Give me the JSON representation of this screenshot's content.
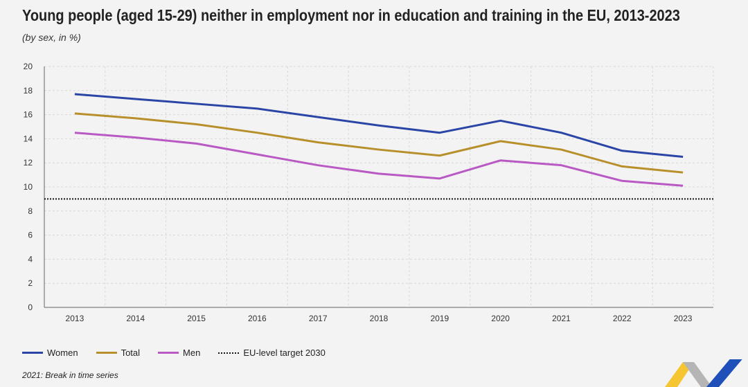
{
  "title": "Young people (aged 15-29) neither in employment nor in education and training in the EU, 2013-2023",
  "subtitle": "(by sex, in %)",
  "note": "2021: Break in time series",
  "chart_data": {
    "type": "line",
    "title": "Young people (aged 15-29) neither in employment nor in education and training in the EU, 2013-2023",
    "xlabel": "",
    "ylabel": "%",
    "categories": [
      "2013",
      "2014",
      "2015",
      "2016",
      "2017",
      "2018",
      "2019",
      "2020",
      "2021",
      "2022",
      "2023"
    ],
    "ylim": [
      0,
      20
    ],
    "yticks": [
      0,
      2,
      4,
      6,
      8,
      10,
      12,
      14,
      16,
      18,
      20
    ],
    "grid": true,
    "legend_position": "bottom-left",
    "series": [
      {
        "name": "Women",
        "color": "#2a45a6",
        "values": [
          17.7,
          17.3,
          16.9,
          16.5,
          15.8,
          15.1,
          14.5,
          15.5,
          14.5,
          13.0,
          12.5
        ]
      },
      {
        "name": "Total",
        "color": "#b7902c",
        "values": [
          16.1,
          15.7,
          15.2,
          14.5,
          13.7,
          13.1,
          12.6,
          13.8,
          13.1,
          11.7,
          11.2
        ]
      },
      {
        "name": "Men",
        "color": "#b959c4",
        "values": [
          14.5,
          14.1,
          13.6,
          12.7,
          11.8,
          11.1,
          10.7,
          12.2,
          11.8,
          10.5,
          10.1
        ]
      }
    ],
    "reference_line": {
      "name": "EU-level target 2030",
      "value": 9.0,
      "color": "#111111"
    }
  }
}
